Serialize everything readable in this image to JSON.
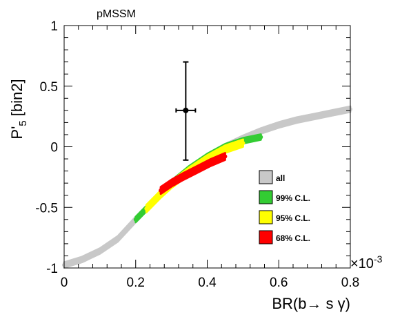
{
  "chart_data": {
    "type": "scatter",
    "title": "pMSSM",
    "xlabel": "BR(b→ s γ)",
    "ylabel": "P'5 [bin2]",
    "ylabel_main": "P'",
    "ylabel_sub": "5",
    "ylabel_rest": " [bin2]",
    "x_exponent_label": "×10",
    "x_exponent_power": "-3",
    "xlim": [
      0,
      0.8
    ],
    "ylim": [
      -1,
      1
    ],
    "x_ticks": [
      "0",
      "0.2",
      "0.4",
      "0.6",
      "0.8"
    ],
    "x_tick_values": [
      0,
      0.2,
      0.4,
      0.6,
      0.8
    ],
    "y_ticks": [
      "-1",
      "-0.5",
      "0",
      "0.5",
      "1"
    ],
    "y_tick_values": [
      -1,
      -0.5,
      0,
      0.5,
      1
    ],
    "grid": false,
    "legend_position": "right-center",
    "series": [
      {
        "name": "all",
        "color": "#c8c8c8",
        "band": [
          [
            0.0,
            -0.975
          ],
          [
            0.05,
            -0.93
          ],
          [
            0.1,
            -0.86
          ],
          [
            0.15,
            -0.76
          ],
          [
            0.2,
            -0.6
          ],
          [
            0.25,
            -0.45
          ],
          [
            0.3,
            -0.3
          ],
          [
            0.35,
            -0.18
          ],
          [
            0.4,
            -0.08
          ],
          [
            0.45,
            0.0
          ],
          [
            0.5,
            0.07
          ],
          [
            0.55,
            0.13
          ],
          [
            0.6,
            0.18
          ],
          [
            0.65,
            0.22
          ],
          [
            0.7,
            0.25
          ],
          [
            0.75,
            0.28
          ],
          [
            0.8,
            0.31
          ]
        ],
        "halfwidth": 0.022
      },
      {
        "name": "99% C.L.",
        "color": "#33cc33",
        "band": [
          [
            0.2,
            -0.6
          ],
          [
            0.25,
            -0.45
          ],
          [
            0.3,
            -0.3
          ],
          [
            0.35,
            -0.18
          ],
          [
            0.4,
            -0.08
          ],
          [
            0.45,
            0.0
          ],
          [
            0.5,
            0.05
          ],
          [
            0.55,
            0.08
          ]
        ],
        "halfwidth": 0.022
      },
      {
        "name": "95% C.L.",
        "color": "#ffff00",
        "band": [
          [
            0.23,
            -0.51
          ],
          [
            0.27,
            -0.39
          ],
          [
            0.3,
            -0.31
          ],
          [
            0.35,
            -0.2
          ],
          [
            0.4,
            -0.1
          ],
          [
            0.45,
            -0.02
          ],
          [
            0.5,
            0.03
          ]
        ],
        "halfwidth": 0.03
      },
      {
        "name": "68% C.L.",
        "color": "#ff0000",
        "band": [
          [
            0.27,
            -0.36
          ],
          [
            0.3,
            -0.3
          ],
          [
            0.33,
            -0.25
          ],
          [
            0.37,
            -0.19
          ],
          [
            0.41,
            -0.13
          ],
          [
            0.45,
            -0.08
          ]
        ],
        "halfwidth": 0.028
      }
    ],
    "measurement": {
      "x": 0.34,
      "y": 0.3,
      "xerr": 0.027,
      "yerr_low": 0.41,
      "yerr_high": 0.4
    },
    "legend": [
      {
        "label": "all",
        "color": "#c8c8c8"
      },
      {
        "label": "99% C.L.",
        "color": "#33cc33"
      },
      {
        "label": "95% C.L.",
        "color": "#ffff00"
      },
      {
        "label": "68% C.L.",
        "color": "#ff0000"
      }
    ]
  }
}
